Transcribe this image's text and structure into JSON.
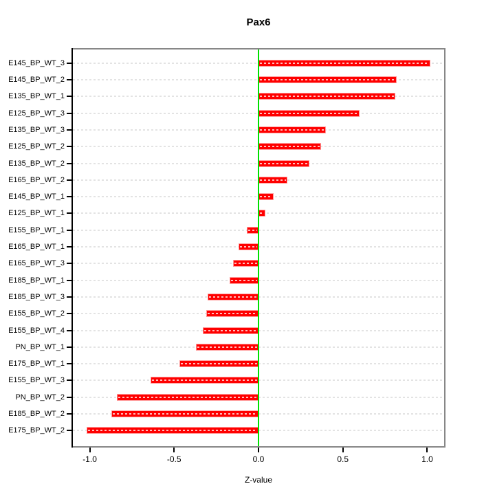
{
  "chart_data": {
    "type": "bar",
    "orientation": "horizontal",
    "title": "Pax6",
    "xlabel": "Z-value",
    "categories": [
      "E145_BP_WT_3",
      "E145_BP_WT_2",
      "E135_BP_WT_1",
      "E125_BP_WT_3",
      "E135_BP_WT_3",
      "E125_BP_WT_2",
      "E135_BP_WT_2",
      "E165_BP_WT_2",
      "E145_BP_WT_1",
      "E125_BP_WT_1",
      "E155_BP_WT_1",
      "E165_BP_WT_1",
      "E165_BP_WT_3",
      "E185_BP_WT_1",
      "E185_BP_WT_3",
      "E155_BP_WT_2",
      "E155_BP_WT_4",
      "PN_BP_WT_1",
      "E175_BP_WT_1",
      "E155_BP_WT_3",
      "PN_BP_WT_2",
      "E185_BP_WT_2",
      "E175_BP_WT_2"
    ],
    "values": [
      1.02,
      0.82,
      0.81,
      0.6,
      0.4,
      0.37,
      0.3,
      0.17,
      0.09,
      0.04,
      -0.07,
      -0.12,
      -0.15,
      -0.17,
      -0.3,
      -0.31,
      -0.33,
      -0.37,
      -0.47,
      -0.64,
      -0.84,
      -0.87,
      -1.02
    ],
    "xlim": [
      -1.1,
      1.1
    ],
    "xticks": [
      -1.0,
      -0.5,
      0.0,
      0.5,
      1.0
    ],
    "xtick_labels": [
      "-1.0",
      "-0.5",
      "0.0",
      "0.5",
      "1.0"
    ],
    "grid": true,
    "colors": {
      "bar_fill": "#ff0000",
      "bar_border": "#ff9a9a",
      "zero_line": "#00e000",
      "grid_line": "#e3e3e3",
      "box_border": "#878787",
      "axis": "#000000"
    }
  }
}
